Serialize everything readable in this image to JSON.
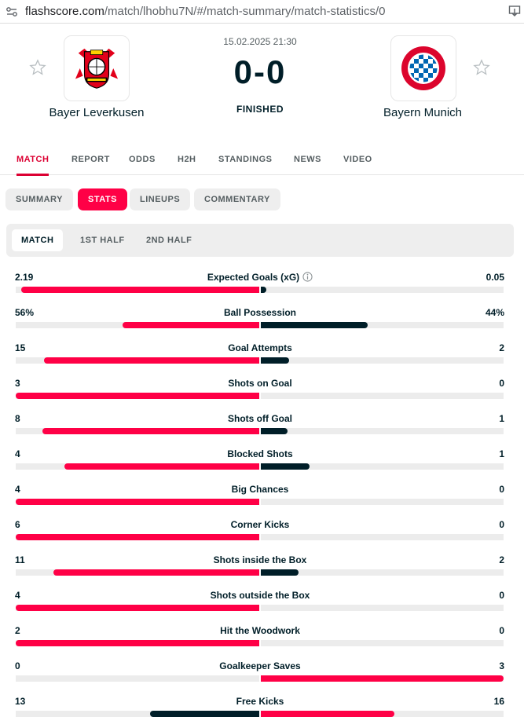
{
  "browser": {
    "url_host": "flashscore.com",
    "url_path": "/match/lhobhu7N/#/match-summary/match-statistics/0"
  },
  "match": {
    "date": "15.02.2025 21:30",
    "score": "0-0",
    "status": "FINISHED",
    "home": {
      "name": "Bayer Leverkusen",
      "logo_icon": "bayer-leverkusen-crest-icon"
    },
    "away": {
      "name": "Bayern Munich",
      "logo_icon": "fc-bayern-crest-icon"
    }
  },
  "tabs": [
    {
      "label": "MATCH",
      "active": true
    },
    {
      "label": "REPORT"
    },
    {
      "label": "ODDS"
    },
    {
      "label": "H2H"
    },
    {
      "label": "STANDINGS"
    },
    {
      "label": "NEWS"
    },
    {
      "label": "VIDEO"
    }
  ],
  "subtabs": [
    {
      "label": "SUMMARY"
    },
    {
      "label": "STATS",
      "active": true
    },
    {
      "label": "LINEUPS"
    },
    {
      "label": "COMMENTARY"
    }
  ],
  "periods": [
    {
      "label": "MATCH",
      "active": true
    },
    {
      "label": "1ST HALF"
    },
    {
      "label": "2ND HALF"
    }
  ],
  "colors": {
    "accent": "#ff0046",
    "dark": "#001e28",
    "track": "#ececec"
  },
  "stats": [
    {
      "label": "Expected Goals (xG)",
      "home": "2.19",
      "away": "0.05",
      "home_value": 2.19,
      "away_value": 0.05,
      "info": true
    },
    {
      "label": "Ball Possession",
      "home": "56%",
      "away": "44%",
      "home_value": 56,
      "away_value": 44
    },
    {
      "label": "Goal Attempts",
      "home": "15",
      "away": "2",
      "home_value": 15,
      "away_value": 2
    },
    {
      "label": "Shots on Goal",
      "home": "3",
      "away": "0",
      "home_value": 3,
      "away_value": 0
    },
    {
      "label": "Shots off Goal",
      "home": "8",
      "away": "1",
      "home_value": 8,
      "away_value": 1
    },
    {
      "label": "Blocked Shots",
      "home": "4",
      "away": "1",
      "home_value": 4,
      "away_value": 1
    },
    {
      "label": "Big Chances",
      "home": "4",
      "away": "0",
      "home_value": 4,
      "away_value": 0
    },
    {
      "label": "Corner Kicks",
      "home": "6",
      "away": "0",
      "home_value": 6,
      "away_value": 0
    },
    {
      "label": "Shots inside the Box",
      "home": "11",
      "away": "2",
      "home_value": 11,
      "away_value": 2
    },
    {
      "label": "Shots outside the Box",
      "home": "4",
      "away": "0",
      "home_value": 4,
      "away_value": 0
    },
    {
      "label": "Hit the Woodwork",
      "home": "2",
      "away": "0",
      "home_value": 2,
      "away_value": 0
    },
    {
      "label": "Goalkeeper Saves",
      "home": "0",
      "away": "3",
      "home_value": 0,
      "away_value": 3
    },
    {
      "label": "Free Kicks",
      "home": "13",
      "away": "16",
      "home_value": 13,
      "away_value": 16
    }
  ]
}
